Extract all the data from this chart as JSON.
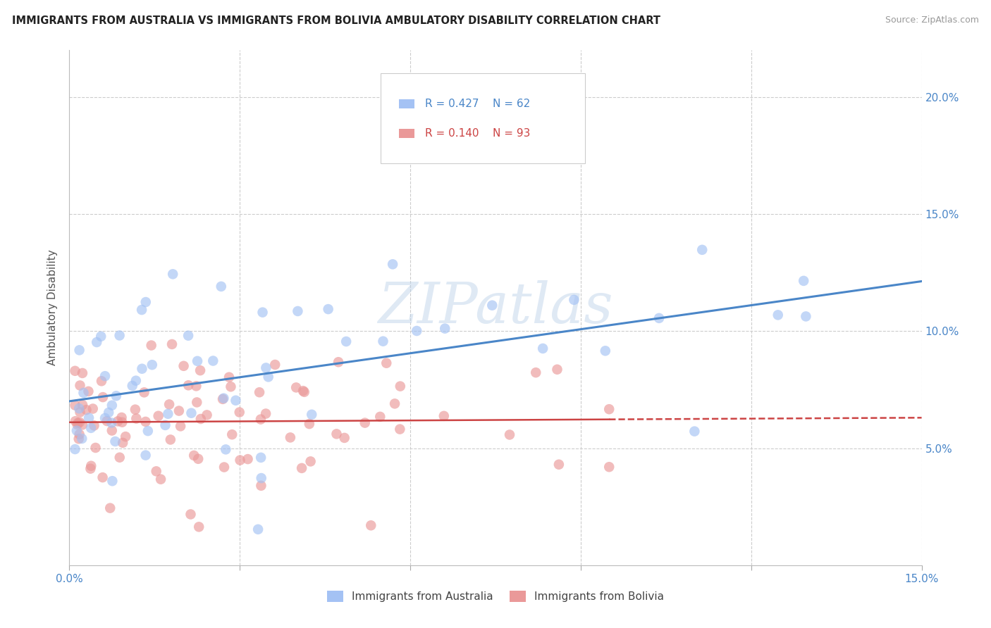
{
  "title": "IMMIGRANTS FROM AUSTRALIA VS IMMIGRANTS FROM BOLIVIA AMBULATORY DISABILITY CORRELATION CHART",
  "source": "Source: ZipAtlas.com",
  "ylabel": "Ambulatory Disability",
  "xlim": [
    0.0,
    0.15
  ],
  "ylim": [
    0.0,
    0.22
  ],
  "australia_color": "#a4c2f4",
  "bolivia_color": "#ea9999",
  "australia_line_color": "#4a86c8",
  "bolivia_line_color": "#cc4444",
  "legend_R_australia": "0.427",
  "legend_N_australia": "62",
  "legend_R_bolivia": "0.140",
  "legend_N_bolivia": "93",
  "watermark": "ZIPatlas",
  "background_color": "#ffffff",
  "grid_color": "#cccccc",
  "tick_color": "#4a86c8",
  "ytick_vals": [
    0.05,
    0.1,
    0.15,
    0.2
  ],
  "ytick_labels": [
    "5.0%",
    "10.0%",
    "15.0%",
    "20.0%"
  ],
  "xtick_vals": [
    0.0,
    0.03,
    0.06,
    0.09,
    0.12,
    0.15
  ],
  "xtick_labels": [
    "0.0%",
    "",
    "",
    "",
    "",
    "15.0%"
  ]
}
